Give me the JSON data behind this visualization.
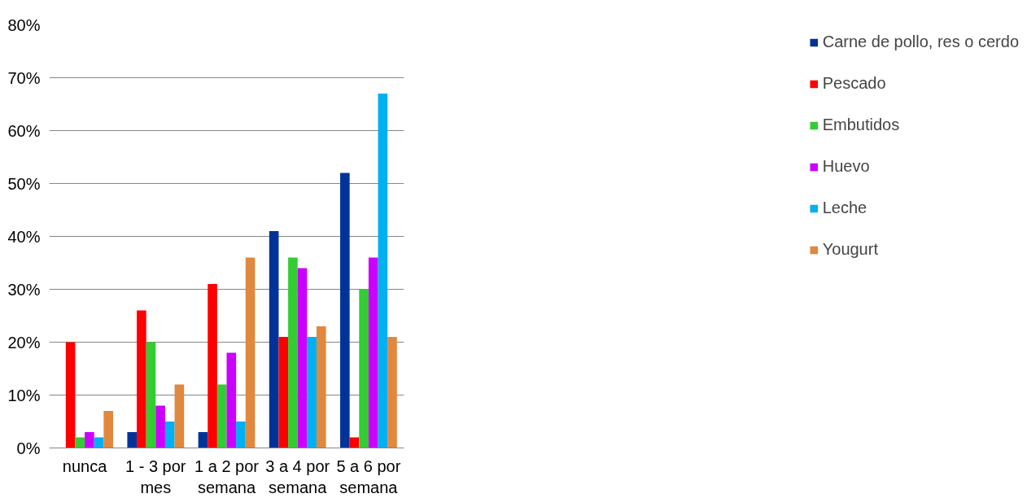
{
  "chart_data": {
    "type": "bar",
    "categories": [
      "nunca",
      "1 - 3 por mes",
      "1 a 2 por semana",
      "3 a 4 por semana",
      "5 a 6 por semana"
    ],
    "series": [
      {
        "name": "Carne de pollo, res o cerdo",
        "color": "#003399",
        "values": [
          0,
          3,
          3,
          41,
          52
        ]
      },
      {
        "name": "Pescado",
        "color": "#ff0000",
        "values": [
          20,
          26,
          31,
          21,
          2
        ]
      },
      {
        "name": "Embutidos",
        "color": "#33cc33",
        "values": [
          2,
          20,
          12,
          36,
          30
        ]
      },
      {
        "name": "Huevo",
        "color": "#cc00ff",
        "values": [
          3,
          8,
          18,
          34,
          36
        ]
      },
      {
        "name": "Leche",
        "color": "#00b0f0",
        "values": [
          2,
          5,
          5,
          21,
          67
        ]
      },
      {
        "name": "Yougurt",
        "color": "#e0883e",
        "values": [
          7,
          12,
          36,
          23,
          21
        ]
      }
    ],
    "ylim": [
      0,
      80
    ],
    "yticks": [
      {
        "value": 0,
        "label": "0%"
      },
      {
        "value": 10,
        "label": "10%"
      },
      {
        "value": 20,
        "label": "20%"
      },
      {
        "value": 30,
        "label": "30%"
      },
      {
        "value": 40,
        "label": "40%"
      },
      {
        "value": 50,
        "label": "50%"
      },
      {
        "value": 60,
        "label": "60%"
      },
      {
        "value": 70,
        "label": "70%"
      },
      {
        "value": 80,
        "label": "80%"
      }
    ],
    "grid": "y",
    "legend": "right"
  }
}
